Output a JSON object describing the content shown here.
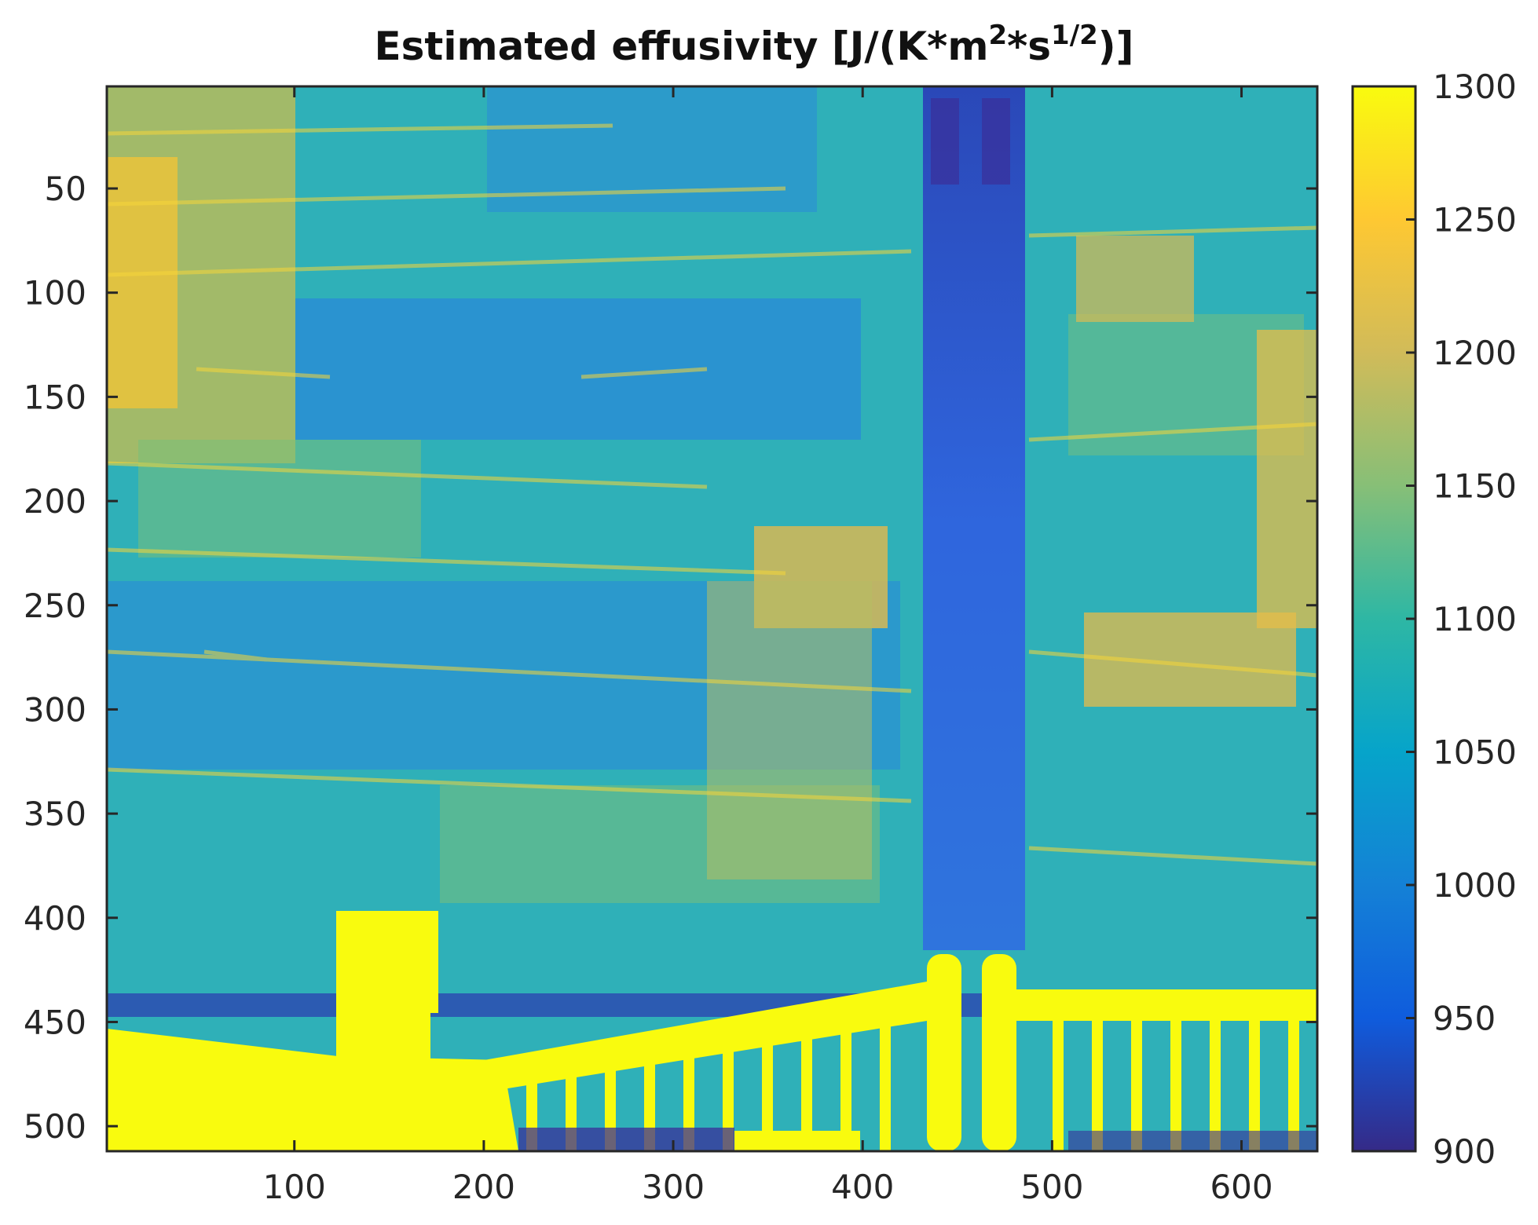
{
  "chart_data": {
    "type": "heatmap",
    "title": {
      "base": "Estimated effusivity [J/(K*m",
      "sup1": "2",
      "mid": "*s",
      "sup2": "1/2",
      "end": ")]"
    },
    "xlabel": "",
    "ylabel": "",
    "xlim": [
      1,
      640
    ],
    "ylim": [
      1,
      512
    ],
    "y_reversed": true,
    "x_ticks": [
      100,
      200,
      300,
      400,
      500,
      600
    ],
    "x_tick_labels": [
      "100",
      "200",
      "300",
      "400",
      "500",
      "600"
    ],
    "y_ticks": [
      50,
      100,
      150,
      200,
      250,
      300,
      350,
      400,
      450,
      500
    ],
    "y_tick_labels": [
      "50",
      "100",
      "150",
      "200",
      "250",
      "300",
      "350",
      "400",
      "450",
      "500"
    ],
    "colorbar": {
      "min": 900,
      "max": 1300,
      "ticks": [
        900,
        950,
        1000,
        1050,
        1100,
        1150,
        1200,
        1250,
        1300
      ],
      "tick_labels": [
        "900",
        "950",
        "1000",
        "1050",
        "1100",
        "1150",
        "1200",
        "1250",
        "1300"
      ],
      "colormap": "parula",
      "colormap_stops": [
        "#352a87",
        "#0f5cdd",
        "#1481d6",
        "#06a4ca",
        "#2eb7a4",
        "#87bf77",
        "#d1bb59",
        "#fec832",
        "#f9fb0e"
      ]
    },
    "grid": false
  }
}
